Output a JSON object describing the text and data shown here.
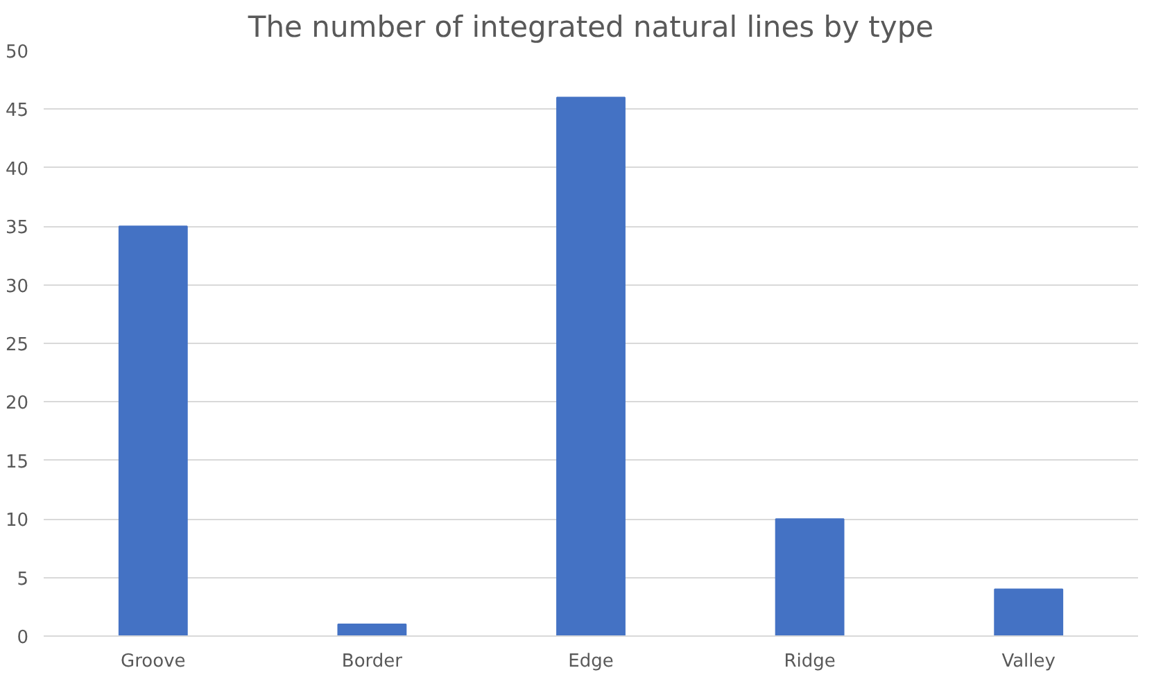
{
  "chart_data": {
    "type": "bar",
    "title": "The number of integrated natural lines by type",
    "categories": [
      "Groove",
      "Border",
      "Edge",
      "Ridge",
      "Valley"
    ],
    "values": [
      35,
      1,
      46,
      10,
      4
    ],
    "color": "#4472c4",
    "ylim": [
      0,
      50
    ],
    "yticks": [
      0,
      5,
      10,
      15,
      20,
      25,
      30,
      35,
      40,
      45,
      50
    ],
    "grid": "y"
  }
}
